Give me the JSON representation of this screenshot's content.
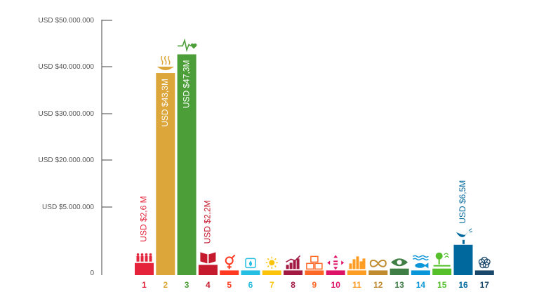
{
  "chart_data": {
    "type": "bar",
    "title": "",
    "xlabel": "",
    "ylabel": "",
    "y_ticks": [
      "USD $50.000.000",
      "USD $40.000.000",
      "USD $30.000.000",
      "USD $20.000.000",
      "USD $5.000.000",
      "0"
    ],
    "categories": [
      "1",
      "2",
      "3",
      "4",
      "5",
      "6",
      "7",
      "8",
      "9",
      "10",
      "11",
      "12",
      "13",
      "14",
      "15",
      "16",
      "17"
    ],
    "values": [
      2.6,
      43.3,
      47.3,
      2.2,
      1.0,
      1.0,
      1.0,
      1.0,
      1.0,
      1.0,
      1.0,
      1.0,
      1.4,
      1.0,
      1.4,
      6.5,
      1.0
    ],
    "value_unit": "USD millions",
    "data_labels": {
      "0": "USD $2,6 M",
      "1": "USD $43,3M",
      "2": "USD $47,3M",
      "3": "USD $2,2M",
      "15": "USD $6,5M"
    },
    "colors": [
      "#E5243B",
      "#DDA63A",
      "#4C9F38",
      "#C5192D",
      "#FF3A21",
      "#26BDE2",
      "#FCC30B",
      "#A21942",
      "#FD6925",
      "#DD1367",
      "#FD9D24",
      "#BF8B2E",
      "#3F7E44",
      "#0A97D9",
      "#56C02B",
      "#00689D",
      "#19486A"
    ],
    "icons": [
      "people-icon",
      "bowl-icon",
      "heartbeat-icon",
      "book-icon",
      "gender-icon",
      "water-drop-icon",
      "sun-icon",
      "growth-chart-icon",
      "cubes-icon",
      "equality-arrows-icon",
      "city-icon",
      "infinity-icon",
      "eye-globe-icon",
      "fish-icon",
      "tree-icon",
      "dove-icon",
      "flower-icon"
    ],
    "grid": false
  }
}
